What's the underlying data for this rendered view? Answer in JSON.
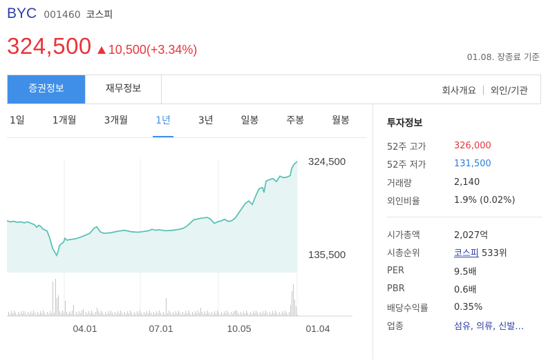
{
  "stock": {
    "name": "BYC",
    "code": "001460",
    "market": "코스피",
    "price": "324,500",
    "change": "10,500(+3.34%)",
    "basis": "01.08. 장종료 기준",
    "up_color": "#e8343a"
  },
  "tabs": {
    "securities": "증권정보",
    "financial": "재무정보",
    "company": "회사개요",
    "foreign": "외인/기관"
  },
  "periods": [
    "1일",
    "1개월",
    "3개월",
    "1년",
    "3년",
    "일봉",
    "주봉",
    "월봉"
  ],
  "active_period": "1년",
  "chart_data": {
    "type": "area",
    "high_label": "324,500",
    "low_label": "135,500",
    "x_ticks": [
      "04.01",
      "07.01",
      "10.05",
      "01.04"
    ],
    "price_x": [
      0,
      5,
      10,
      15,
      20,
      25,
      30,
      35,
      40,
      43,
      46,
      49,
      51,
      54,
      58,
      62,
      66,
      70,
      72,
      74,
      76,
      78,
      80,
      82,
      84,
      87,
      90,
      95,
      100,
      110,
      120,
      126,
      130,
      135,
      140,
      150,
      160,
      170,
      180,
      190,
      200,
      205,
      210,
      215,
      220,
      230,
      240,
      245,
      250,
      255,
      260,
      265,
      270,
      280,
      290,
      295,
      300,
      305,
      310,
      315,
      320,
      325,
      330,
      335,
      340,
      345,
      350,
      355,
      360,
      365,
      370,
      372,
      375,
      380,
      385,
      390,
      395,
      400,
      405,
      410,
      412,
      415,
      420
    ],
    "price_y": [
      205000,
      203000,
      204000,
      202000,
      203000,
      201000,
      203000,
      200000,
      197000,
      192000,
      196000,
      194000,
      190000,
      187000,
      185000,
      170000,
      150000,
      140000,
      135500,
      143000,
      155000,
      158000,
      160000,
      162000,
      170000,
      166000,
      167000,
      168000,
      169000,
      174000,
      180000,
      190000,
      193000,
      183000,
      180000,
      181000,
      184000,
      186000,
      183000,
      182000,
      184000,
      185000,
      188000,
      186000,
      187000,
      185000,
      186000,
      187000,
      188000,
      190000,
      194000,
      200000,
      207000,
      210000,
      212000,
      208000,
      200000,
      203000,
      205000,
      208000,
      204000,
      205000,
      210000,
      220000,
      230000,
      240000,
      245000,
      238000,
      255000,
      270000,
      272000,
      262000,
      285000,
      288000,
      290000,
      284000,
      295000,
      292000,
      293000,
      296000,
      310000,
      318000,
      324500
    ],
    "ylim": [
      135500,
      324500
    ]
  },
  "invest": {
    "title": "투자정보",
    "rows": [
      {
        "k": "52주 고가",
        "v": "326,000"
      },
      {
        "k": "52주 저가",
        "v": "131,500"
      },
      {
        "k": "거래량",
        "v": "2,140"
      },
      {
        "k": "외인비율",
        "v": "1.9% (0.02%)"
      }
    ],
    "rows2": [
      {
        "k": "시가총액",
        "v": "2,027억"
      },
      {
        "k": "시총순위",
        "v_link": "코스피",
        "v_rest": " 533위"
      },
      {
        "k": "PER",
        "v": "9.5배"
      },
      {
        "k": "PBR",
        "v": "0.6배"
      },
      {
        "k": "배당수익률",
        "v": "0.35%"
      },
      {
        "k": "업종",
        "v": "섬유, 의류, 신발…"
      }
    ]
  }
}
